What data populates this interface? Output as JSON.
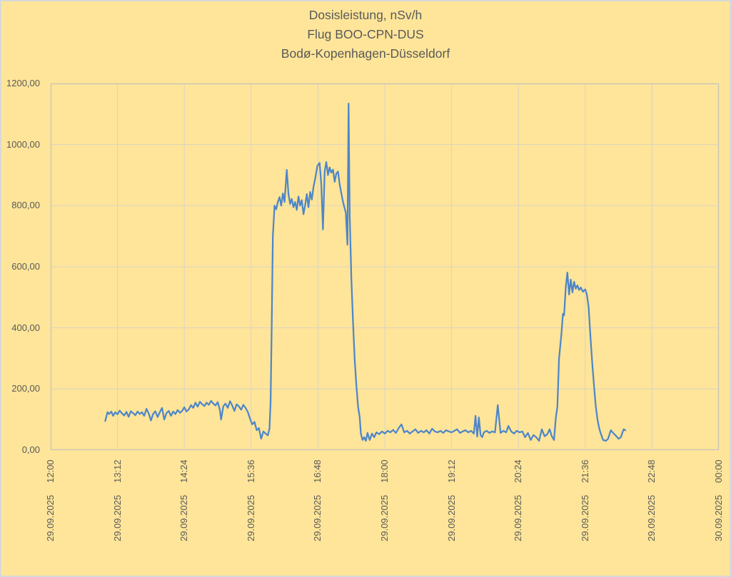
{
  "page": {
    "kind": "excel-line-chart-screenshot",
    "background_color": "#ffe599",
    "text_color": "#595959",
    "gridline_color": "#d9d3c5",
    "plot_border_color": "#c9c5ba"
  },
  "chart_data": {
    "type": "line",
    "title": "Dosisleistung, nSv/h",
    "subtitle_flight": "Flug BOO-CPN-DUS",
    "subtitle_route": "Bodø-Kopenhagen-Düsseldorf",
    "ylabel": "",
    "xlabel": "",
    "legend": "none",
    "grid": true,
    "ylim": [
      0,
      1200
    ],
    "xlim_hours": [
      12,
      24
    ],
    "line_color": "#4e86c8",
    "yticks": [
      {
        "value": 0,
        "label": "0,00"
      },
      {
        "value": 200,
        "label": "200,00"
      },
      {
        "value": 400,
        "label": "400,00"
      },
      {
        "value": 600,
        "label": "600,00"
      },
      {
        "value": 800,
        "label": "800,00"
      },
      {
        "value": 1000,
        "label": "1000,00"
      },
      {
        "value": 1200,
        "label": "1200,00"
      }
    ],
    "xticks": [
      {
        "hour": 12.0,
        "time": "12:00",
        "date": "29.09.2025"
      },
      {
        "hour": 13.2,
        "time": "13:12",
        "date": "29.09.2025"
      },
      {
        "hour": 14.4,
        "time": "14:24",
        "date": "29.09.2025"
      },
      {
        "hour": 15.6,
        "time": "15:36",
        "date": "29.09.2025"
      },
      {
        "hour": 16.8,
        "time": "16:48",
        "date": "29.09.2025"
      },
      {
        "hour": 18.0,
        "time": "18:00",
        "date": "29.09.2025"
      },
      {
        "hour": 19.2,
        "time": "19:12",
        "date": "29.09.2025"
      },
      {
        "hour": 20.4,
        "time": "20:24",
        "date": "29.09.2025"
      },
      {
        "hour": 21.6,
        "time": "21:36",
        "date": "29.09.2025"
      },
      {
        "hour": 22.8,
        "time": "22:48",
        "date": "29.09.2025"
      },
      {
        "hour": 24.0,
        "time": "00:00",
        "date": "30.09.2025"
      }
    ],
    "series": [
      {
        "name": "Dosisleistung nSv/h",
        "points": [
          [
            12.98,
            95
          ],
          [
            13.02,
            124
          ],
          [
            13.05,
            118
          ],
          [
            13.09,
            126
          ],
          [
            13.12,
            112
          ],
          [
            13.16,
            124
          ],
          [
            13.2,
            117
          ],
          [
            13.24,
            129
          ],
          [
            13.28,
            120
          ],
          [
            13.32,
            113
          ],
          [
            13.36,
            125
          ],
          [
            13.4,
            109
          ],
          [
            13.44,
            127
          ],
          [
            13.48,
            121
          ],
          [
            13.52,
            114
          ],
          [
            13.56,
            126
          ],
          [
            13.6,
            118
          ],
          [
            13.64,
            124
          ],
          [
            13.68,
            112
          ],
          [
            13.72,
            135
          ],
          [
            13.76,
            120
          ],
          [
            13.8,
            97
          ],
          [
            13.84,
            118
          ],
          [
            13.88,
            127
          ],
          [
            13.92,
            108
          ],
          [
            13.96,
            124
          ],
          [
            14.0,
            138
          ],
          [
            14.04,
            100
          ],
          [
            14.08,
            121
          ],
          [
            14.12,
            128
          ],
          [
            14.16,
            112
          ],
          [
            14.2,
            126
          ],
          [
            14.24,
            118
          ],
          [
            14.28,
            131
          ],
          [
            14.32,
            122
          ],
          [
            14.36,
            128
          ],
          [
            14.4,
            140
          ],
          [
            14.44,
            126
          ],
          [
            14.48,
            133
          ],
          [
            14.52,
            147
          ],
          [
            14.56,
            138
          ],
          [
            14.6,
            155
          ],
          [
            14.64,
            142
          ],
          [
            14.68,
            158
          ],
          [
            14.72,
            150
          ],
          [
            14.76,
            144
          ],
          [
            14.8,
            155
          ],
          [
            14.84,
            148
          ],
          [
            14.88,
            161
          ],
          [
            14.92,
            152
          ],
          [
            14.96,
            146
          ],
          [
            15.0,
            157
          ],
          [
            15.04,
            130
          ],
          [
            15.06,
            100
          ],
          [
            15.1,
            143
          ],
          [
            15.14,
            152
          ],
          [
            15.18,
            138
          ],
          [
            15.22,
            160
          ],
          [
            15.26,
            146
          ],
          [
            15.3,
            128
          ],
          [
            15.34,
            150
          ],
          [
            15.38,
            143
          ],
          [
            15.42,
            132
          ],
          [
            15.46,
            148
          ],
          [
            15.5,
            138
          ],
          [
            15.54,
            125
          ],
          [
            15.58,
            103
          ],
          [
            15.62,
            84
          ],
          [
            15.66,
            92
          ],
          [
            15.7,
            65
          ],
          [
            15.74,
            72
          ],
          [
            15.78,
            37
          ],
          [
            15.82,
            61
          ],
          [
            15.86,
            54
          ],
          [
            15.9,
            48
          ],
          [
            15.93,
            70
          ],
          [
            15.95,
            160
          ],
          [
            15.97,
            420
          ],
          [
            15.99,
            700
          ],
          [
            16.02,
            800
          ],
          [
            16.05,
            788
          ],
          [
            16.08,
            812
          ],
          [
            16.11,
            828
          ],
          [
            16.14,
            800
          ],
          [
            16.17,
            840
          ],
          [
            16.2,
            812
          ],
          [
            16.24,
            917
          ],
          [
            16.27,
            838
          ],
          [
            16.3,
            806
          ],
          [
            16.33,
            822
          ],
          [
            16.36,
            795
          ],
          [
            16.39,
            812
          ],
          [
            16.42,
            786
          ],
          [
            16.45,
            830
          ],
          [
            16.48,
            800
          ],
          [
            16.51,
            818
          ],
          [
            16.54,
            772
          ],
          [
            16.57,
            802
          ],
          [
            16.6,
            838
          ],
          [
            16.63,
            795
          ],
          [
            16.66,
            845
          ],
          [
            16.69,
            820
          ],
          [
            16.72,
            862
          ],
          [
            16.75,
            888
          ],
          [
            16.79,
            930
          ],
          [
            16.83,
            940
          ],
          [
            16.86,
            870
          ],
          [
            16.89,
            722
          ],
          [
            16.92,
            912
          ],
          [
            16.95,
            943
          ],
          [
            16.98,
            900
          ],
          [
            17.01,
            925
          ],
          [
            17.04,
            908
          ],
          [
            17.07,
            918
          ],
          [
            17.1,
            878
          ],
          [
            17.13,
            905
          ],
          [
            17.16,
            912
          ],
          [
            17.19,
            870
          ],
          [
            17.22,
            840
          ],
          [
            17.25,
            812
          ],
          [
            17.3,
            777
          ],
          [
            17.33,
            672
          ],
          [
            17.35,
            1134
          ],
          [
            17.37,
            766
          ],
          [
            17.4,
            560
          ],
          [
            17.43,
            420
          ],
          [
            17.46,
            294
          ],
          [
            17.49,
            212
          ],
          [
            17.52,
            142
          ],
          [
            17.55,
            107
          ],
          [
            17.57,
            54
          ],
          [
            17.6,
            33
          ],
          [
            17.63,
            42
          ],
          [
            17.66,
            30
          ],
          [
            17.69,
            56
          ],
          [
            17.73,
            33
          ],
          [
            17.77,
            54
          ],
          [
            17.81,
            42
          ],
          [
            17.85,
            58
          ],
          [
            17.9,
            52
          ],
          [
            17.95,
            61
          ],
          [
            18.0,
            54
          ],
          [
            18.05,
            63
          ],
          [
            18.1,
            58
          ],
          [
            18.15,
            66
          ],
          [
            18.2,
            56
          ],
          [
            18.25,
            72
          ],
          [
            18.3,
            84
          ],
          [
            18.35,
            58
          ],
          [
            18.4,
            63
          ],
          [
            18.45,
            54
          ],
          [
            18.5,
            61
          ],
          [
            18.55,
            68
          ],
          [
            18.6,
            56
          ],
          [
            18.65,
            63
          ],
          [
            18.7,
            58
          ],
          [
            18.75,
            65
          ],
          [
            18.8,
            54
          ],
          [
            18.85,
            70
          ],
          [
            18.9,
            61
          ],
          [
            18.95,
            58
          ],
          [
            19.0,
            63
          ],
          [
            19.05,
            56
          ],
          [
            19.1,
            65
          ],
          [
            19.15,
            61
          ],
          [
            19.2,
            58
          ],
          [
            19.25,
            63
          ],
          [
            19.3,
            68
          ],
          [
            19.35,
            56
          ],
          [
            19.4,
            61
          ],
          [
            19.45,
            65
          ],
          [
            19.5,
            58
          ],
          [
            19.55,
            63
          ],
          [
            19.6,
            54
          ],
          [
            19.63,
            112
          ],
          [
            19.66,
            44
          ],
          [
            19.69,
            107
          ],
          [
            19.72,
            49
          ],
          [
            19.75,
            42
          ],
          [
            19.78,
            58
          ],
          [
            19.83,
            63
          ],
          [
            19.88,
            56
          ],
          [
            19.93,
            61
          ],
          [
            19.98,
            58
          ],
          [
            20.03,
            147
          ],
          [
            20.08,
            56
          ],
          [
            20.13,
            63
          ],
          [
            20.18,
            58
          ],
          [
            20.22,
            79
          ],
          [
            20.27,
            61
          ],
          [
            20.32,
            54
          ],
          [
            20.37,
            63
          ],
          [
            20.42,
            58
          ],
          [
            20.47,
            61
          ],
          [
            20.52,
            42
          ],
          [
            20.57,
            56
          ],
          [
            20.62,
            33
          ],
          [
            20.67,
            49
          ],
          [
            20.72,
            42
          ],
          [
            20.77,
            30
          ],
          [
            20.82,
            68
          ],
          [
            20.87,
            45
          ],
          [
            20.92,
            52
          ],
          [
            20.96,
            68
          ],
          [
            21.0,
            45
          ],
          [
            21.04,
            33
          ],
          [
            21.07,
            103
          ],
          [
            21.1,
            142
          ],
          [
            21.13,
            299
          ],
          [
            21.17,
            376
          ],
          [
            21.2,
            446
          ],
          [
            21.22,
            441
          ],
          [
            21.25,
            532
          ],
          [
            21.28,
            581
          ],
          [
            21.31,
            509
          ],
          [
            21.34,
            558
          ],
          [
            21.37,
            516
          ],
          [
            21.4,
            551
          ],
          [
            21.43,
            528
          ],
          [
            21.46,
            539
          ],
          [
            21.49,
            524
          ],
          [
            21.52,
            532
          ],
          [
            21.56,
            518
          ],
          [
            21.6,
            526
          ],
          [
            21.63,
            509
          ],
          [
            21.66,
            469
          ],
          [
            21.7,
            353
          ],
          [
            21.73,
            276
          ],
          [
            21.76,
            205
          ],
          [
            21.79,
            142
          ],
          [
            21.82,
            100
          ],
          [
            21.85,
            72
          ],
          [
            21.88,
            54
          ],
          [
            21.92,
            33
          ],
          [
            21.97,
            30
          ],
          [
            22.01,
            37
          ],
          [
            22.06,
            65
          ],
          [
            22.1,
            56
          ],
          [
            22.14,
            49
          ],
          [
            22.2,
            37
          ],
          [
            22.24,
            42
          ],
          [
            22.29,
            68
          ],
          [
            22.32,
            65
          ]
        ]
      }
    ]
  }
}
